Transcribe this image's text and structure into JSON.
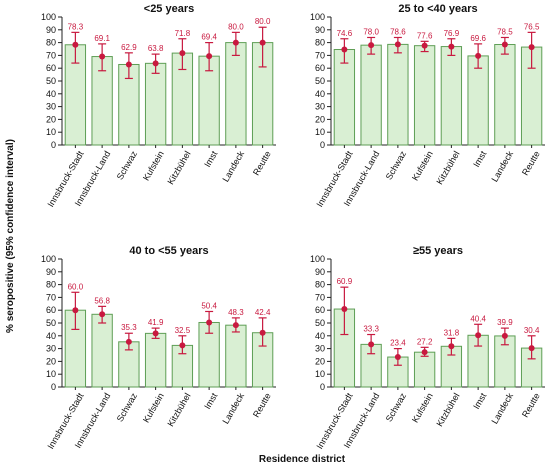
{
  "colors": {
    "bar_fill": "#d9efd3",
    "bar_stroke": "#5e9e55",
    "marker": "#c8193f",
    "axis": "#222222"
  },
  "y_axis_label": "% seropositive (95% confidence interval)",
  "x_axis_label": "Residence district",
  "chart_data": [
    {
      "type": "bar",
      "title": "<25 years",
      "categories": [
        "Innsbruck-Stadt",
        "Innsbruck-Land",
        "Schwaz",
        "Kufstein",
        "Kitzbühel",
        "Imst",
        "Landeck",
        "Reutte"
      ],
      "values": [
        78.3,
        69.1,
        62.9,
        63.8,
        71.8,
        69.4,
        80.0,
        80.0
      ],
      "ci_low": [
        64,
        58,
        52,
        56,
        59,
        58,
        70,
        61
      ],
      "ci_high": [
        88,
        79,
        72,
        71,
        83,
        80,
        88,
        92
      ],
      "ylim": [
        0,
        100
      ],
      "yticks": [
        0,
        10,
        20,
        30,
        40,
        50,
        60,
        70,
        80,
        90,
        100
      ]
    },
    {
      "type": "bar",
      "title": "25 to <40 years",
      "categories": [
        "Innsbruck-Stadt",
        "Innsbruck-Land",
        "Schwaz",
        "Kufstein",
        "Kitzbühel",
        "Imst",
        "Landeck",
        "Reutte"
      ],
      "values": [
        74.6,
        78.0,
        78.6,
        77.6,
        76.9,
        69.6,
        78.5,
        76.5
      ],
      "ci_low": [
        64,
        71,
        72,
        73,
        70,
        60,
        71,
        60
      ],
      "ci_high": [
        83,
        84,
        84,
        81,
        83,
        79,
        84,
        88
      ],
      "ylim": [
        0,
        100
      ],
      "yticks": [
        0,
        10,
        20,
        30,
        40,
        50,
        60,
        70,
        80,
        90,
        100
      ]
    },
    {
      "type": "bar",
      "title": "40 to <55 years",
      "categories": [
        "Innsbruck-Stadt",
        "Innsbruck-Land",
        "Schwaz",
        "Kufstein",
        "Kitzbühel",
        "Imst",
        "Landeck",
        "Reutte"
      ],
      "values": [
        60.0,
        56.8,
        35.3,
        41.9,
        32.5,
        50.4,
        48.3,
        42.4
      ],
      "ci_low": [
        45,
        50,
        29,
        38,
        26,
        42,
        43,
        32
      ],
      "ci_high": [
        74,
        63,
        42,
        46,
        40,
        59,
        54,
        54
      ],
      "ylim": [
        0,
        100
      ],
      "yticks": [
        0,
        10,
        20,
        30,
        40,
        50,
        60,
        70,
        80,
        90,
        100
      ]
    },
    {
      "type": "bar",
      "title": "≥55 years",
      "categories": [
        "Innsbruck-Stadt",
        "Innsbruck-Land",
        "Schwaz",
        "Kufstein",
        "Kitzbühel",
        "Imst",
        "Landeck",
        "Reutte"
      ],
      "values": [
        60.9,
        33.3,
        23.4,
        27.2,
        31.8,
        40.4,
        39.9,
        30.4
      ],
      "ci_low": [
        41,
        26,
        17,
        24,
        25,
        32,
        33,
        22
      ],
      "ci_high": [
        78,
        41,
        30,
        31,
        38,
        49,
        46,
        40
      ],
      "ylim": [
        0,
        100
      ],
      "yticks": [
        0,
        10,
        20,
        30,
        40,
        50,
        60,
        70,
        80,
        90,
        100
      ]
    }
  ]
}
